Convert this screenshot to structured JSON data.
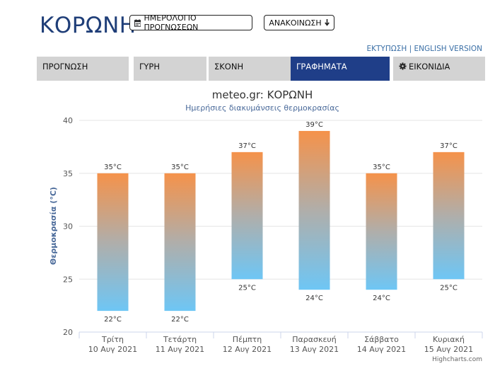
{
  "header": {
    "title": "ΚΟΡΩΝΗ",
    "calendar_button": "ΗΜΕΡΟΛΟΓΙΟ ΠΡΟΓΝΩΣΕΩΝ",
    "announcement_button": "ΑΝΑΚΟΙΝΩΣΗ",
    "print_link": "ΕΚΤΥΠΩΣΗ",
    "separator": "|",
    "english_link": "ENGLISH VERSION"
  },
  "tabs": [
    {
      "label": "ΠΡΟΓΝΩΣΗ",
      "active": false
    },
    {
      "label": "ΓΥΡΗ",
      "active": false
    },
    {
      "label": "ΣΚΟΝΗ",
      "active": false
    },
    {
      "label": "ΓΡΑΦΗΜΑΤΑ",
      "active": true
    },
    {
      "label": "ΕΙΚΟΝΙΔΙΑ",
      "active": false
    }
  ],
  "colors": {
    "title": "#1f3e78",
    "tab_bg": "#d3d3d3",
    "tab_active_bg": "#1f3e88",
    "bar_top": "#f5924a",
    "bar_bottom": "#6ec6f5",
    "link": "#3a6fa6"
  },
  "chart_data": {
    "type": "bar",
    "subtype": "columnrange",
    "title": "meteo.gr: ΚΟΡΩΝΗ",
    "subtitle": "Ημερήσιες διακυμάνσεις θερμοκρασίας",
    "ylabel": "Θερμοκρασία (°C)",
    "ylim": [
      20,
      40
    ],
    "yticks": [
      20,
      25,
      30,
      35,
      40
    ],
    "grid": true,
    "credit": "Highcharts.com",
    "categories": [
      {
        "day": "Τρίτη",
        "date": "10 Αυγ 2021"
      },
      {
        "day": "Τετάρτη",
        "date": "11 Αυγ 2021"
      },
      {
        "day": "Πέμπτη",
        "date": "12 Αυγ 2021"
      },
      {
        "day": "Παρασκευή",
        "date": "13 Αυγ 2021"
      },
      {
        "day": "Σάββατο",
        "date": "14 Αυγ 2021"
      },
      {
        "day": "Κυριακή",
        "date": "15 Αυγ 2021"
      }
    ],
    "low": [
      22,
      22,
      25,
      24,
      24,
      25
    ],
    "high": [
      35,
      35,
      37,
      39,
      35,
      37
    ],
    "unit": "°C"
  }
}
